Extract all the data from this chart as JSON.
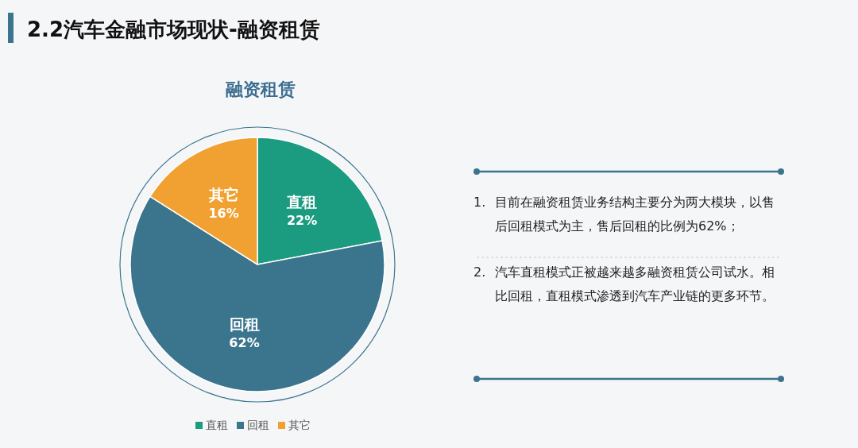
{
  "chart_data": {
    "type": "pie",
    "title": "融资租赁",
    "subtitle": "2.2汽车金融市场现状-融资租赁",
    "categories": [
      "直租",
      "回租",
      "其它"
    ],
    "values": [
      22,
      62,
      16
    ],
    "colors": [
      "#1b9b7f",
      "#3b748d",
      "#f0a132"
    ],
    "legend": "bottom",
    "value_labels": [
      "22%",
      "62%",
      "16%"
    ],
    "annotations": [
      "1. 目前在融资租赁业务结构主要分为两大模块，以售后回租模式为主，售后回租的比例为62%；",
      "2. 汽车直租模式正被越来越多融资租赁公司试水。相比回租，直租模式渗透到汽车产业链的更多环节。"
    ]
  }
}
